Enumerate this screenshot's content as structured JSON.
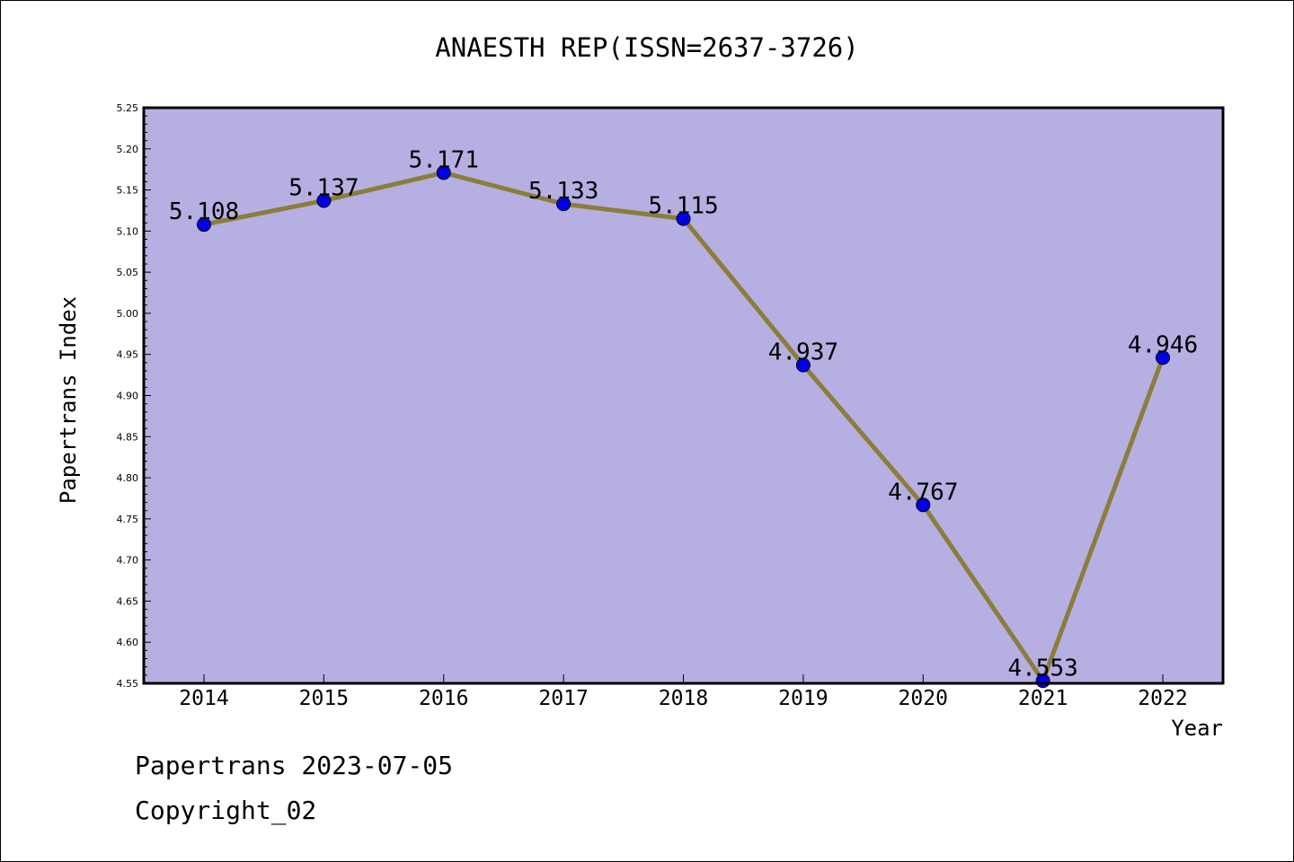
{
  "chart_data": {
    "type": "line",
    "title": "ANAESTH REP(ISSN=2637-3726)",
    "xlabel": "Year",
    "ylabel": "Papertrans Index",
    "x": [
      "2014",
      "2015",
      "2016",
      "2017",
      "2018",
      "2019",
      "2020",
      "2021",
      "2022"
    ],
    "series": [
      {
        "values": [
          5.108,
          5.137,
          5.171,
          5.133,
          5.115,
          4.937,
          4.767,
          4.553,
          4.946
        ]
      }
    ],
    "data_labels": [
      "5.108",
      "5.137",
      "5.171",
      "5.133",
      "5.115",
      "4.937",
      "4.767",
      "4.553",
      "4.946"
    ],
    "ylim": [
      4.55,
      5.25
    ],
    "yticks": [
      "4.55",
      "4.60",
      "4.65",
      "4.70",
      "4.75",
      "4.80",
      "4.85",
      "4.90",
      "4.95",
      "5.00",
      "5.05",
      "5.10",
      "5.15",
      "5.20",
      "5.25"
    ],
    "colors": {
      "plot_bg": "#b5afe2",
      "line": "#8b7d3a",
      "marker": "#0000ee"
    },
    "grid": false
  },
  "footer": {
    "line1": "Papertrans 2023-07-05",
    "line2": "Copyright_02"
  }
}
